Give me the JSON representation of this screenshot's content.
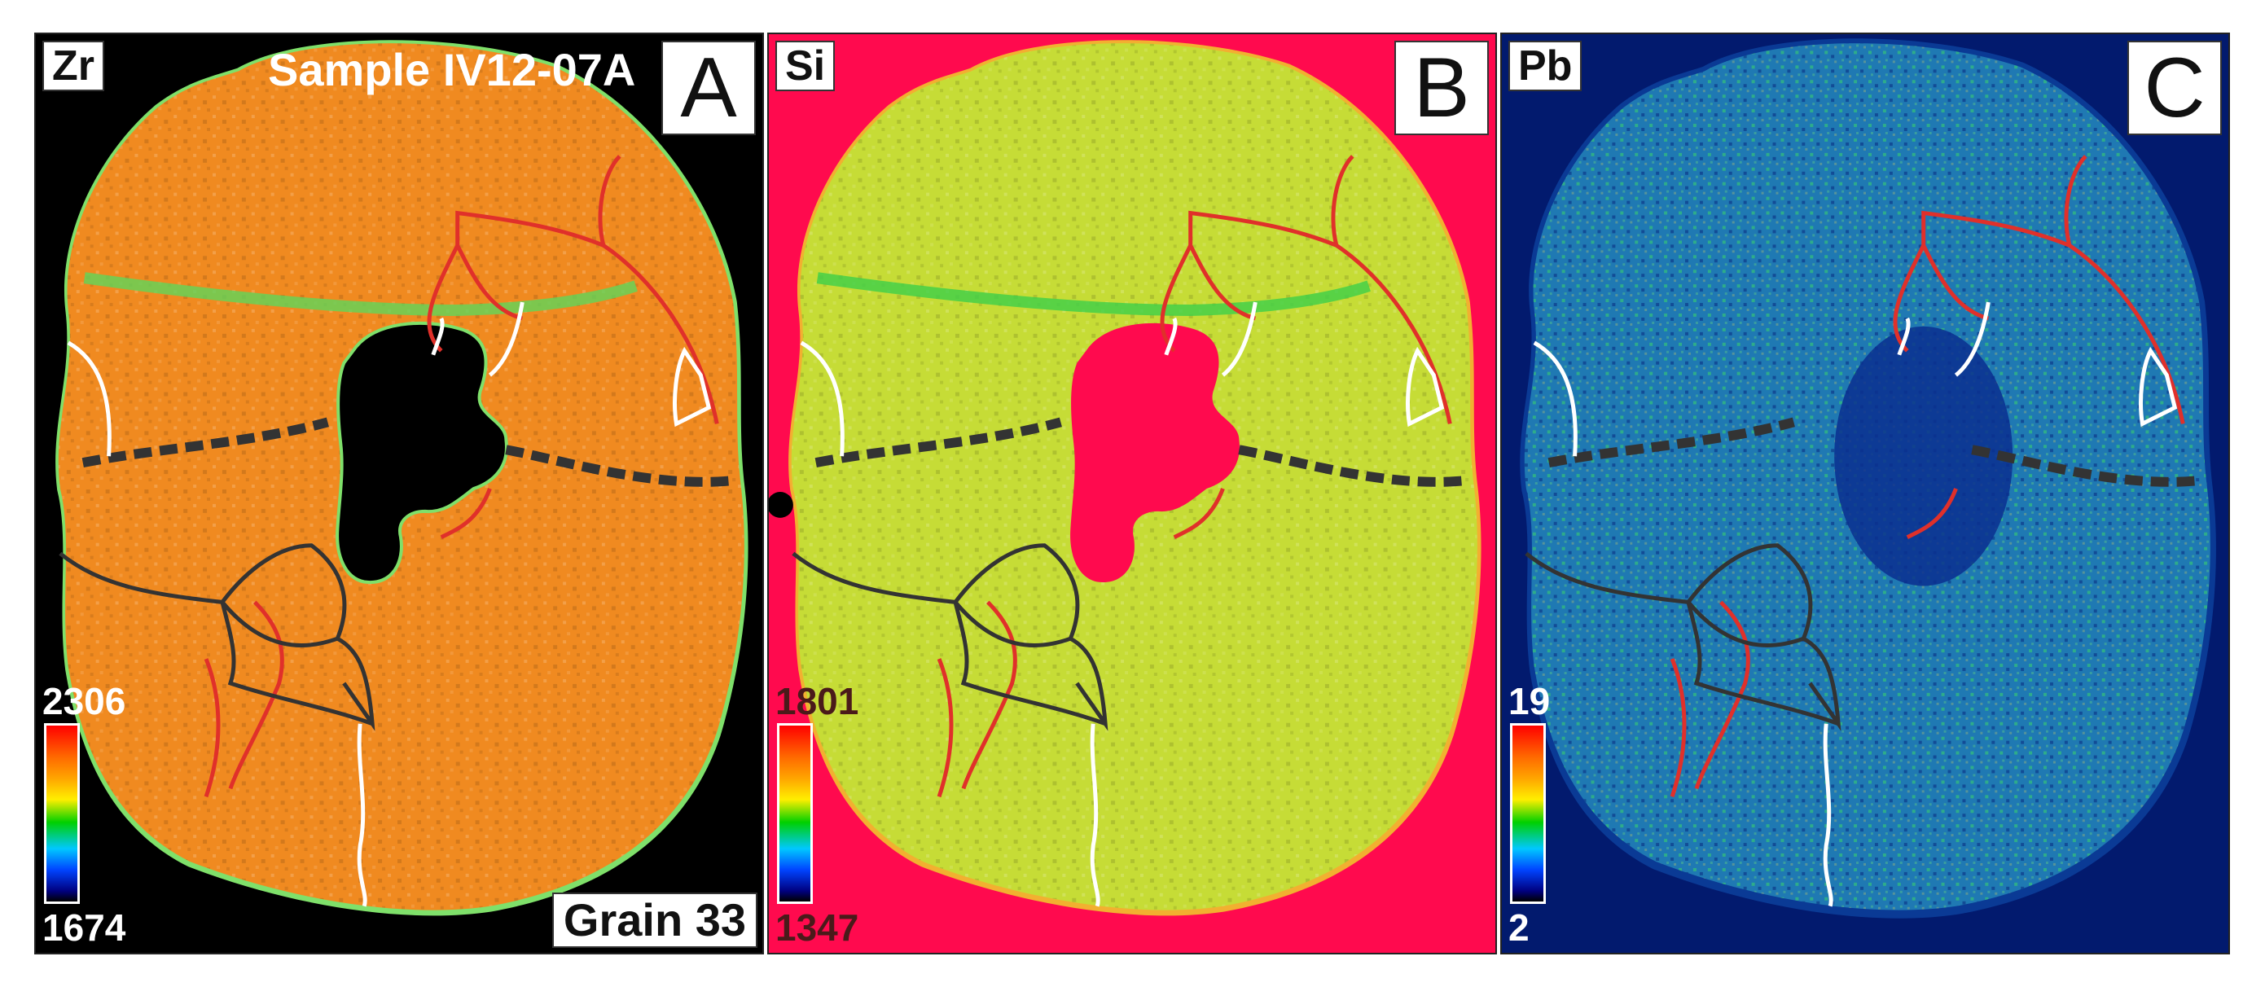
{
  "figure": {
    "sample": "Sample IV12-07A",
    "grain": "Grain 33",
    "panels": [
      {
        "letter": "A",
        "element": "Zr",
        "scale_max": "2306",
        "scale_min": "1674",
        "background": "#000000",
        "grain_color": "#f08a20",
        "grain_edge": "#7fe06a"
      },
      {
        "letter": "B",
        "element": "Si",
        "scale_max": "1801",
        "scale_min": "1347",
        "background": "#ff0a4e",
        "grain_color": "#c6dc36",
        "grain_edge": "#f2b030"
      },
      {
        "letter": "C",
        "element": "Pb",
        "scale_max": "19",
        "scale_min": "2",
        "background": "#021a6e",
        "grain_color": "#1f79b3",
        "grain_edge": "#0a3a95"
      }
    ]
  }
}
